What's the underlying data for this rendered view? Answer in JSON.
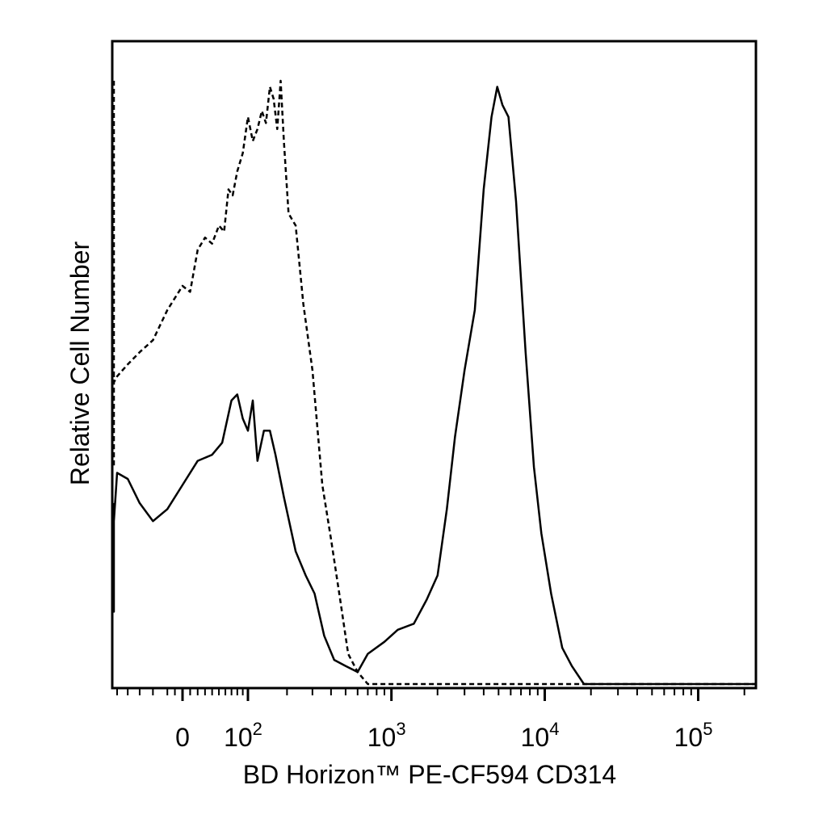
{
  "chart_data": {
    "type": "line",
    "title": "",
    "xlabel": "BD Horizon™ PE-CF594 CD314",
    "ylabel": "Relative Cell Number",
    "x_scale": "biexponential",
    "x_ticks": [
      {
        "base": "0",
        "exp": "",
        "value": 0
      },
      {
        "base": "10",
        "exp": "2",
        "value": 100
      },
      {
        "base": "10",
        "exp": "3",
        "value": 1000
      },
      {
        "base": "10",
        "exp": "4",
        "value": 10000
      },
      {
        "base": "10",
        "exp": "5",
        "value": 100000
      }
    ],
    "y_ticks": [],
    "grid": false,
    "legend": "none",
    "series": [
      {
        "style": "dashed",
        "points": [
          [
            -300,
            1.0
          ],
          [
            -290,
            0.38
          ],
          [
            -275,
            0.36
          ],
          [
            -260,
            0.37
          ],
          [
            -240,
            0.38
          ],
          [
            -220,
            0.39
          ],
          [
            -190,
            0.42
          ],
          [
            -160,
            0.46
          ],
          [
            -140,
            0.52
          ],
          [
            -120,
            0.5
          ],
          [
            -100,
            0.51
          ],
          [
            -80,
            0.53
          ],
          [
            -60,
            0.55
          ],
          [
            -40,
            0.57
          ],
          [
            -20,
            0.62
          ],
          [
            0,
            0.66
          ],
          [
            10,
            0.65
          ],
          [
            20,
            0.72
          ],
          [
            30,
            0.74
          ],
          [
            40,
            0.73
          ],
          [
            50,
            0.76
          ],
          [
            58,
            0.75
          ],
          [
            65,
            0.82
          ],
          [
            72,
            0.81
          ],
          [
            80,
            0.85
          ],
          [
            90,
            0.88
          ],
          [
            100,
            0.94
          ],
          [
            110,
            0.9
          ],
          [
            120,
            0.92
          ],
          [
            130,
            0.95
          ],
          [
            140,
            0.93
          ],
          [
            150,
            0.99
          ],
          [
            160,
            0.97
          ],
          [
            170,
            0.92
          ],
          [
            180,
            1.0
          ],
          [
            190,
            0.9
          ],
          [
            205,
            0.78
          ],
          [
            230,
            0.76
          ],
          [
            260,
            0.63
          ],
          [
            300,
            0.52
          ],
          [
            350,
            0.33
          ],
          [
            400,
            0.24
          ],
          [
            460,
            0.14
          ],
          [
            520,
            0.05
          ],
          [
            600,
            0.02
          ],
          [
            700,
            0.0
          ],
          [
            20000,
            0.0
          ],
          [
            250000,
            0.0
          ]
        ]
      },
      {
        "style": "solid",
        "points": [
          [
            -300,
            0.3
          ],
          [
            -290,
            0.12
          ],
          [
            -275,
            0.14
          ],
          [
            -255,
            0.19
          ],
          [
            -230,
            0.21
          ],
          [
            -200,
            0.22
          ],
          [
            -170,
            0.25
          ],
          [
            -150,
            0.28
          ],
          [
            -120,
            0.27
          ],
          [
            -100,
            0.35
          ],
          [
            -80,
            0.34
          ],
          [
            -60,
            0.3
          ],
          [
            -40,
            0.27
          ],
          [
            -20,
            0.29
          ],
          [
            0,
            0.33
          ],
          [
            20,
            0.37
          ],
          [
            40,
            0.38
          ],
          [
            55,
            0.4
          ],
          [
            70,
            0.47
          ],
          [
            80,
            0.48
          ],
          [
            90,
            0.44
          ],
          [
            100,
            0.42
          ],
          [
            110,
            0.47
          ],
          [
            120,
            0.37
          ],
          [
            135,
            0.42
          ],
          [
            150,
            0.42
          ],
          [
            165,
            0.38
          ],
          [
            190,
            0.31
          ],
          [
            230,
            0.22
          ],
          [
            270,
            0.18
          ],
          [
            310,
            0.15
          ],
          [
            360,
            0.08
          ],
          [
            420,
            0.04
          ],
          [
            500,
            0.03
          ],
          [
            600,
            0.02
          ],
          [
            700,
            0.05
          ],
          [
            900,
            0.07
          ],
          [
            1100,
            0.09
          ],
          [
            1400,
            0.1
          ],
          [
            1700,
            0.14
          ],
          [
            2000,
            0.18
          ],
          [
            2300,
            0.29
          ],
          [
            2600,
            0.41
          ],
          [
            3000,
            0.52
          ],
          [
            3500,
            0.62
          ],
          [
            4000,
            0.82
          ],
          [
            4500,
            0.94
          ],
          [
            4900,
            0.99
          ],
          [
            5300,
            0.96
          ],
          [
            5800,
            0.94
          ],
          [
            6500,
            0.8
          ],
          [
            7500,
            0.55
          ],
          [
            8500,
            0.36
          ],
          [
            9500,
            0.25
          ],
          [
            11000,
            0.15
          ],
          [
            13000,
            0.06
          ],
          [
            15000,
            0.03
          ],
          [
            18000,
            0.0
          ],
          [
            30000,
            0.0
          ],
          [
            250000,
            0.0
          ]
        ]
      }
    ]
  }
}
